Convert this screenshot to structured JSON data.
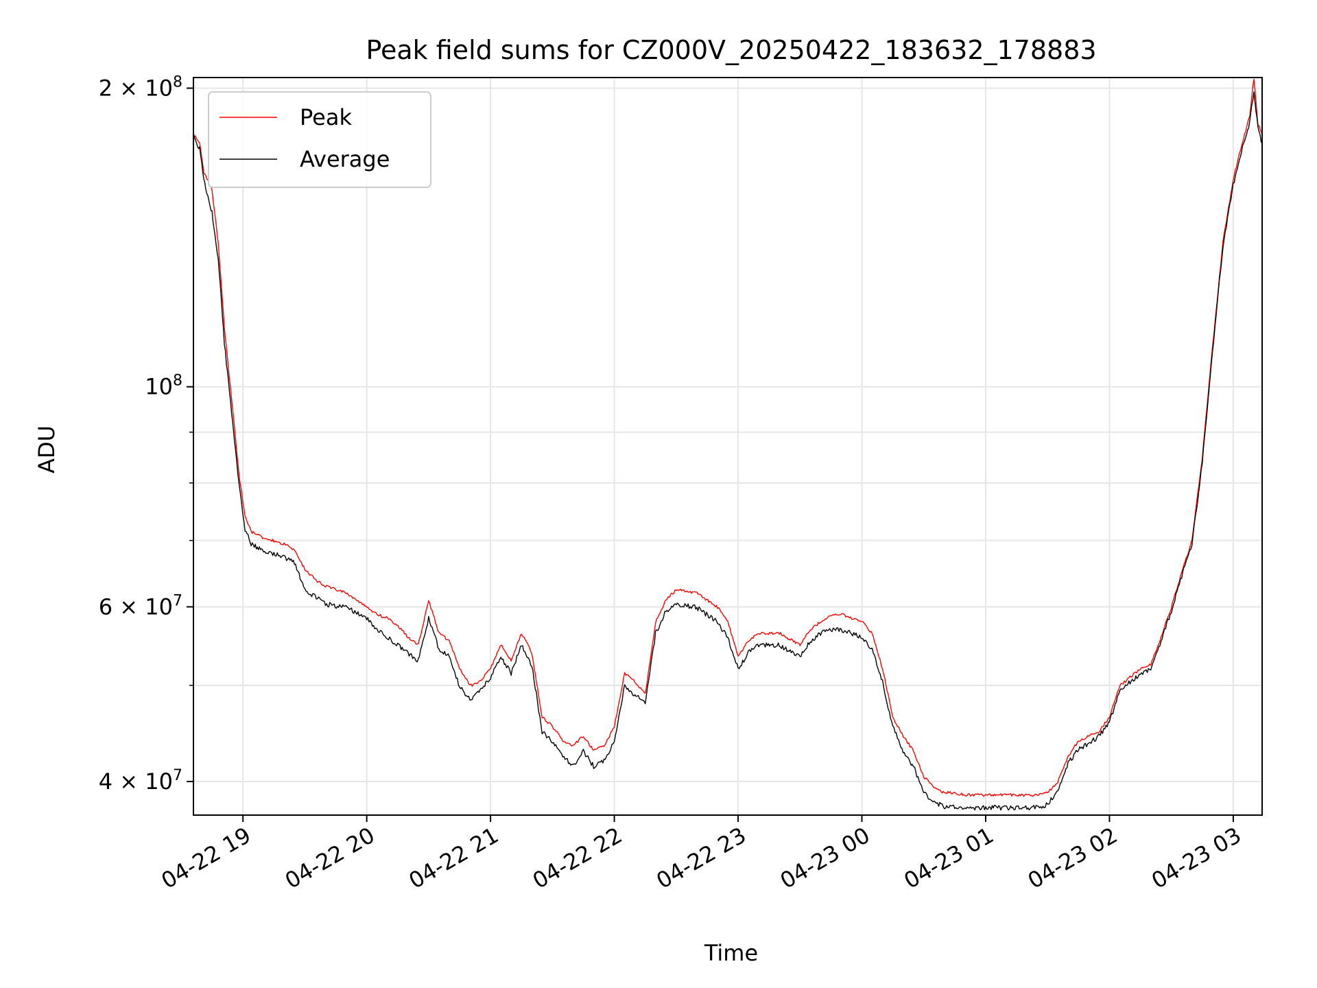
{
  "chart_data": {
    "type": "line",
    "title": "Peak field sums for CZ000V_20250422_183632_178883",
    "xlabel": "Time",
    "ylabel": "ADU",
    "y_scale": "log",
    "x_range": [
      "2025-04-22 18:36",
      "2025-04-23 03:14"
    ],
    "ylim": [
      37000000,
      205000000
    ],
    "grid": true,
    "legend_position": "top-left",
    "x_ticks": [
      {
        "t": "2025-04-22 19:00",
        "label": "04-22 19"
      },
      {
        "t": "2025-04-22 20:00",
        "label": "04-22 20"
      },
      {
        "t": "2025-04-22 21:00",
        "label": "04-22 21"
      },
      {
        "t": "2025-04-22 22:00",
        "label": "04-22 22"
      },
      {
        "t": "2025-04-22 23:00",
        "label": "04-22 23"
      },
      {
        "t": "2025-04-23 00:00",
        "label": "04-23 00"
      },
      {
        "t": "2025-04-23 01:00",
        "label": "04-23 01"
      },
      {
        "t": "2025-04-23 02:00",
        "label": "04-23 02"
      },
      {
        "t": "2025-04-23 03:00",
        "label": "04-23 03"
      }
    ],
    "y_ticks_major": [
      {
        "value": 40000000,
        "mantissa": "4",
        "exponent": "7"
      },
      {
        "value": 60000000,
        "mantissa": "6",
        "exponent": "7"
      },
      {
        "value": 100000000,
        "mantissa": "",
        "exponent": "8"
      },
      {
        "value": 200000000,
        "mantissa": "2",
        "exponent": "8"
      }
    ],
    "y_ticks_minor": [
      50000000,
      70000000,
      80000000,
      90000000
    ],
    "x": [
      "2025-04-22 18:36",
      "2025-04-22 18:39",
      "2025-04-22 18:41",
      "2025-04-22 18:45",
      "2025-04-22 18:48",
      "2025-04-22 18:51",
      "2025-04-22 18:55",
      "2025-04-22 18:58",
      "2025-04-22 19:01",
      "2025-04-22 19:04",
      "2025-04-22 19:07",
      "2025-04-22 19:10",
      "2025-04-22 19:15",
      "2025-04-22 19:20",
      "2025-04-22 19:25",
      "2025-04-22 19:30",
      "2025-04-22 19:35",
      "2025-04-22 19:40",
      "2025-04-22 19:50",
      "2025-04-22 20:00",
      "2025-04-22 20:05",
      "2025-04-22 20:10",
      "2025-04-22 20:15",
      "2025-04-22 20:20",
      "2025-04-22 20:25",
      "2025-04-22 20:30",
      "2025-04-22 20:35",
      "2025-04-22 20:40",
      "2025-04-22 20:45",
      "2025-04-22 20:50",
      "2025-04-22 20:55",
      "2025-04-22 21:00",
      "2025-04-22 21:05",
      "2025-04-22 21:10",
      "2025-04-22 21:15",
      "2025-04-22 21:20",
      "2025-04-22 21:25",
      "2025-04-22 21:30",
      "2025-04-22 21:35",
      "2025-04-22 21:40",
      "2025-04-22 21:45",
      "2025-04-22 21:50",
      "2025-04-22 21:55",
      "2025-04-22 22:00",
      "2025-04-22 22:05",
      "2025-04-22 22:10",
      "2025-04-22 22:15",
      "2025-04-22 22:20",
      "2025-04-22 22:25",
      "2025-04-22 22:30",
      "2025-04-22 22:40",
      "2025-04-22 22:50",
      "2025-04-22 22:55",
      "2025-04-22 23:00",
      "2025-04-22 23:05",
      "2025-04-22 23:10",
      "2025-04-22 23:20",
      "2025-04-22 23:30",
      "2025-04-22 23:35",
      "2025-04-22 23:40",
      "2025-04-22 23:45",
      "2025-04-22 23:50",
      "2025-04-22 23:55",
      "2025-04-23 00:00",
      "2025-04-23 00:05",
      "2025-04-23 00:10",
      "2025-04-23 00:15",
      "2025-04-23 00:20",
      "2025-04-23 00:25",
      "2025-04-23 00:30",
      "2025-04-23 00:35",
      "2025-04-23 00:40",
      "2025-04-23 00:45",
      "2025-04-23 00:50",
      "2025-04-23 01:00",
      "2025-04-23 01:10",
      "2025-04-23 01:20",
      "2025-04-23 01:25",
      "2025-04-23 01:30",
      "2025-04-23 01:35",
      "2025-04-23 01:40",
      "2025-04-23 01:45",
      "2025-04-23 01:50",
      "2025-04-23 01:55",
      "2025-04-23 02:00",
      "2025-04-23 02:05",
      "2025-04-23 02:10",
      "2025-04-23 02:15",
      "2025-04-23 02:20",
      "2025-04-23 02:25",
      "2025-04-23 02:30",
      "2025-04-23 02:35",
      "2025-04-23 02:40",
      "2025-04-23 02:45",
      "2025-04-23 02:50",
      "2025-04-23 02:55",
      "2025-04-23 03:00",
      "2025-04-23 03:03",
      "2025-04-23 03:05",
      "2025-04-23 03:08",
      "2025-04-23 03:10",
      "2025-04-23 03:12",
      "2025-04-23 03:14"
    ],
    "series": [
      {
        "name": "Peak",
        "color": "#ff0000",
        "values": [
          180000000,
          176000000,
          165000000,
          158000000,
          140000000,
          115000000,
          95000000,
          82000000,
          74000000,
          71500000,
          71000000,
          70500000,
          70000000,
          69500000,
          68500000,
          65500000,
          64000000,
          63000000,
          62000000,
          60000000,
          59000000,
          58500000,
          57500000,
          56000000,
          55000000,
          61000000,
          56500000,
          55500000,
          52000000,
          50000000,
          50500000,
          52000000,
          55000000,
          53000000,
          56500000,
          54000000,
          46500000,
          45500000,
          44000000,
          43500000,
          44500000,
          43000000,
          43500000,
          45500000,
          51500000,
          50500000,
          49000000,
          58000000,
          61000000,
          62500000,
          62000000,
          60000000,
          58000000,
          53500000,
          55500000,
          56500000,
          56500000,
          55000000,
          57000000,
          58000000,
          59000000,
          59000000,
          58500000,
          58000000,
          56500000,
          52000000,
          46500000,
          44500000,
          43000000,
          40500000,
          39500000,
          39000000,
          39000000,
          38800000,
          38800000,
          38800000,
          38800000,
          38800000,
          39000000,
          40000000,
          42500000,
          44000000,
          44500000,
          45000000,
          46500000,
          50000000,
          51000000,
          52000000,
          52500000,
          56000000,
          60000000,
          65000000,
          70000000,
          85000000,
          110000000,
          140000000,
          162000000,
          172000000,
          178000000,
          188000000,
          205000000,
          184000000,
          180000000
        ]
      },
      {
        "name": "Average",
        "color": "#000000",
        "values": [
          180000000,
          174000000,
          162000000,
          150000000,
          135000000,
          111000000,
          92000000,
          80000000,
          72000000,
          69500000,
          69000000,
          68500000,
          68000000,
          67500000,
          66500000,
          62500000,
          61500000,
          60500000,
          60000000,
          58500000,
          57000000,
          56000000,
          55000000,
          54000000,
          53000000,
          58500000,
          54500000,
          53500000,
          50000000,
          48500000,
          49500000,
          51000000,
          53500000,
          51500000,
          55000000,
          52500000,
          45000000,
          44000000,
          42500000,
          41500000,
          43000000,
          41500000,
          42000000,
          44000000,
          50000000,
          49000000,
          48000000,
          56500000,
          59500000,
          60500000,
          60000000,
          58000000,
          56000000,
          52000000,
          54000000,
          55000000,
          55000000,
          53500000,
          55500000,
          56500000,
          57000000,
          57000000,
          56500000,
          56000000,
          54500000,
          50500000,
          45500000,
          43000000,
          41500000,
          39000000,
          38200000,
          37800000,
          37800000,
          37700000,
          37700000,
          37700000,
          37700000,
          37700000,
          38000000,
          39200000,
          41800000,
          43200000,
          43800000,
          44500000,
          46000000,
          49500000,
          50500000,
          51500000,
          52000000,
          55500000,
          59500000,
          64500000,
          69500000,
          84000000,
          109000000,
          139000000,
          160000000,
          170000000,
          176000000,
          185000000,
          199000000,
          182000000,
          176000000
        ]
      }
    ]
  }
}
